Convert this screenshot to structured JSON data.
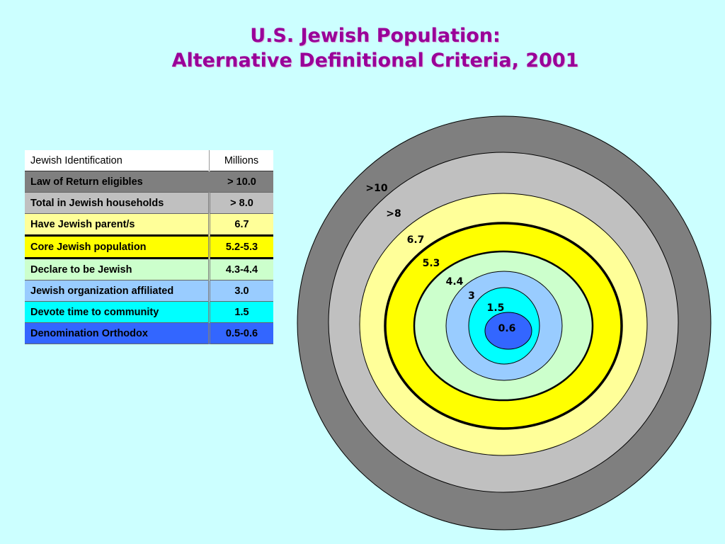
{
  "title_line1": "U.S. Jewish Population:",
  "title_line2": "Alternative Definitional Criteria, 2001",
  "table": {
    "header_label": "Jewish Identification",
    "header_value": "Millions",
    "rows": [
      {
        "label": "Law of Return eligibles",
        "value": "> 10.0",
        "color": "#7f7f7f"
      },
      {
        "label": "Total in Jewish households",
        "value": "> 8.0",
        "color": "#c0c0c0"
      },
      {
        "label": "Have Jewish parent/s",
        "value": "6.7",
        "color": "#ffff99"
      },
      {
        "label": "Core Jewish population",
        "value": "5.2-5.3",
        "color": "#ffff00"
      },
      {
        "label": "Declare to be Jewish",
        "value": "4.3-4.4",
        "color": "#ccffcc"
      },
      {
        "label": "Jewish organization affiliated",
        "value": "3.0",
        "color": "#99ccff"
      },
      {
        "label": "Devote time to community",
        "value": "1.5",
        "color": "#00ffff"
      },
      {
        "label": "Denomination Orthodox",
        "value": "0.5-0.6",
        "color": "#3366ff"
      }
    ]
  },
  "chart_data": {
    "type": "nested-circles",
    "rings": [
      {
        "label": ">10",
        "value": 10,
        "color": "#7f7f7f"
      },
      {
        "label": ">8",
        "value": 8,
        "color": "#c0c0c0"
      },
      {
        "label": "6.7",
        "value": 6.7,
        "color": "#ffff99"
      },
      {
        "label": "5.3",
        "value": 5.3,
        "color": "#ffff00",
        "emphasis": true
      },
      {
        "label": "4.4",
        "value": 4.4,
        "color": "#ccffcc"
      },
      {
        "label": "3",
        "value": 3,
        "color": "#99ccff"
      },
      {
        "label": "1.5",
        "value": 1.5,
        "color": "#00ffff"
      },
      {
        "label": "0.6",
        "value": 0.6,
        "color": "#3366ff"
      }
    ]
  }
}
